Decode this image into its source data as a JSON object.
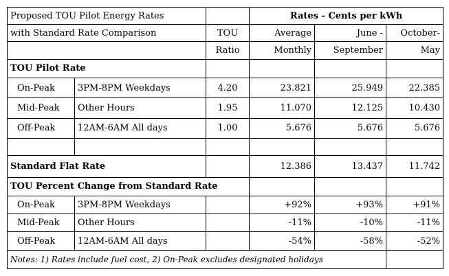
{
  "header": {
    "title_line1": "Proposed TOU Pilot Energy Rates",
    "title_line2": "with Standard Rate Comparison",
    "rates_group": "Rates - Cents per kWh",
    "tou_label_1": "TOU",
    "tou_label_2": "Ratio",
    "col_avg_1": "",
    "col_avg_2": "Average",
    "col_avg_3": "Monthly",
    "col_jun_1": "June -",
    "col_jun_2": "September",
    "col_oct_1": "October-",
    "col_oct_2": "May"
  },
  "tou_pilot": {
    "title": "TOU Pilot Rate",
    "rows": [
      {
        "period": "On-Peak",
        "hours": "3PM-8PM Weekdays",
        "ratio": "4.20",
        "avg": "23.821",
        "jun": "25.949",
        "oct": "22.385"
      },
      {
        "period": "Mid-Peak",
        "hours": "Other Hours",
        "ratio": "1.95",
        "avg": "11.070",
        "jun": "12.125",
        "oct": "10.430"
      },
      {
        "period": "Off-Peak",
        "hours": "12AM-6AM All days",
        "ratio": "1.00",
        "avg": "5.676",
        "jun": "5.676",
        "oct": "5.676"
      }
    ]
  },
  "standard": {
    "title": "Standard Flat Rate",
    "avg": "12.386",
    "jun": "13.437",
    "oct": "11.742"
  },
  "change": {
    "title": "TOU Percent Change from Standard Rate",
    "rows": [
      {
        "period": "On-Peak",
        "hours": "3PM-8PM Weekdays",
        "avg": "+92%",
        "jun": "+93%",
        "oct": "+91%"
      },
      {
        "period": "Mid-Peak",
        "hours": "Other Hours",
        "avg": "-11%",
        "jun": "-10%",
        "oct": "-11%"
      },
      {
        "period": "Off-Peak",
        "hours": "12AM-6AM All days",
        "avg": "-54%",
        "jun": "-58%",
        "oct": "-52%"
      }
    ]
  },
  "notes": "Notes: 1) Rates include fuel cost, 2) On-Peak excludes designated holidays"
}
